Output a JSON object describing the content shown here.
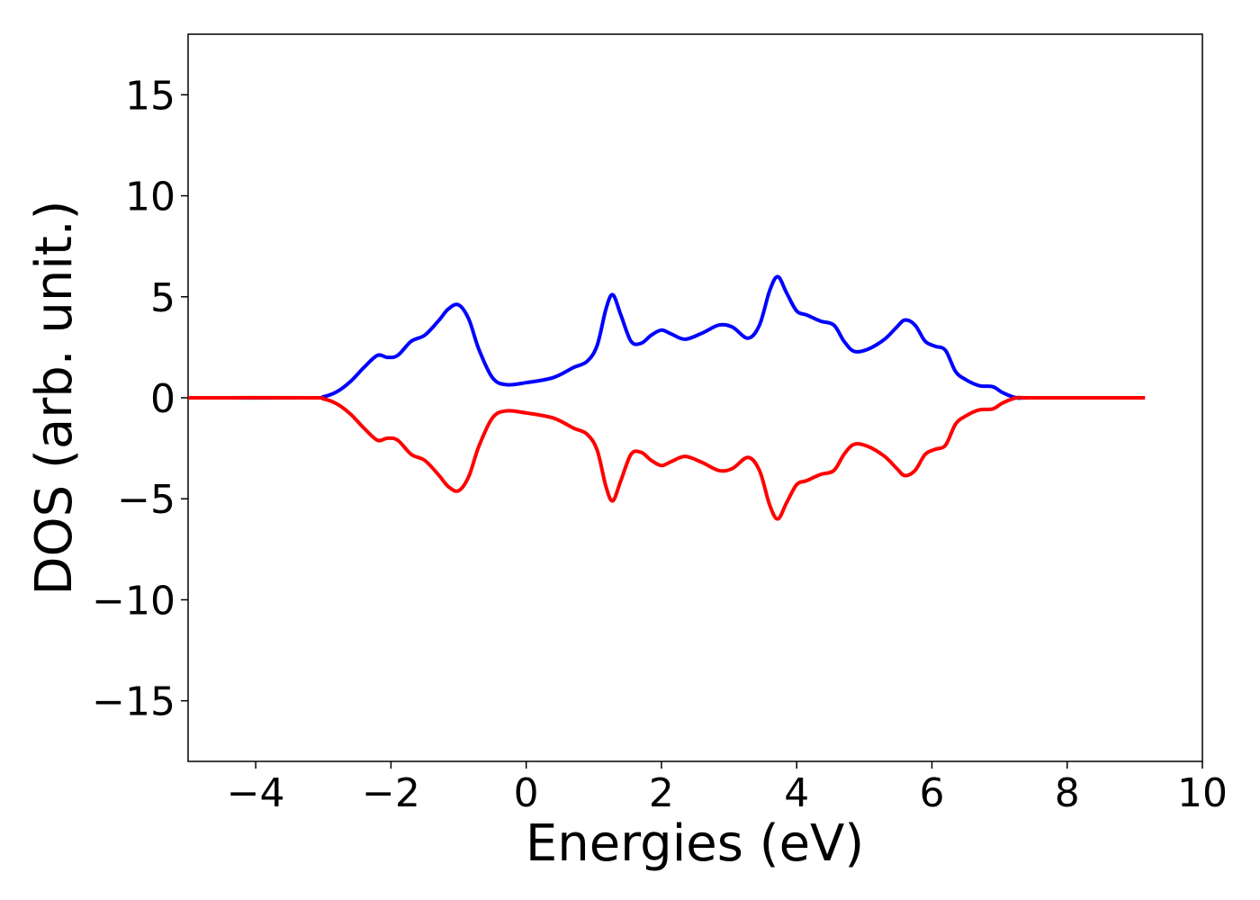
{
  "chart_data": {
    "type": "line",
    "title": "",
    "xlabel": "Energies (eV)",
    "ylabel": "DOS (arb. unit.)",
    "xlim": [
      -5,
      10
    ],
    "ylim": [
      -18,
      18
    ],
    "x_ticks": [
      -4,
      -2,
      0,
      2,
      4,
      6,
      8,
      10
    ],
    "x_tick_labels": [
      "−4",
      "−2",
      "0",
      "2",
      "4",
      "6",
      "8",
      "10"
    ],
    "y_ticks": [
      -15,
      -10,
      -5,
      0,
      5,
      10,
      15
    ],
    "y_tick_labels": [
      "−15",
      "−10",
      "−5",
      "0",
      "5",
      "10",
      "15"
    ],
    "grid": false,
    "legend": "none",
    "series": [
      {
        "color": "#0000ff",
        "x": [
          -5,
          -3.2,
          -3.0,
          -2.8,
          -2.6,
          -2.4,
          -2.2,
          -2.05,
          -1.9,
          -1.7,
          -1.5,
          -1.3,
          -1.15,
          -1.0,
          -0.85,
          -0.7,
          -0.5,
          -0.3,
          0.0,
          0.4,
          0.7,
          0.9,
          1.05,
          1.18,
          1.28,
          1.4,
          1.55,
          1.7,
          1.85,
          2.0,
          2.15,
          2.35,
          2.6,
          2.85,
          3.05,
          3.28,
          3.45,
          3.6,
          3.72,
          3.85,
          4.0,
          4.15,
          4.35,
          4.55,
          4.7,
          4.85,
          5.05,
          5.3,
          5.48,
          5.6,
          5.75,
          5.9,
          6.05,
          6.2,
          6.35,
          6.5,
          6.7,
          6.9,
          7.05,
          7.25,
          7.5,
          9.15
        ],
        "y": [
          0,
          0,
          0.05,
          0.3,
          0.8,
          1.5,
          2.1,
          2.0,
          2.1,
          2.8,
          3.1,
          3.8,
          4.4,
          4.6,
          3.9,
          2.4,
          1.0,
          0.65,
          0.75,
          1.0,
          1.5,
          1.8,
          2.6,
          4.4,
          5.1,
          4.1,
          2.8,
          2.7,
          3.1,
          3.35,
          3.15,
          2.9,
          3.2,
          3.6,
          3.5,
          2.95,
          3.6,
          5.3,
          6.0,
          5.2,
          4.3,
          4.1,
          3.8,
          3.6,
          2.8,
          2.3,
          2.4,
          2.9,
          3.5,
          3.85,
          3.6,
          2.8,
          2.55,
          2.35,
          1.3,
          0.9,
          0.6,
          0.55,
          0.25,
          0.0,
          0,
          0
        ]
      },
      {
        "color": "#ff0000",
        "x": [
          -5,
          -3.2,
          -3.0,
          -2.8,
          -2.6,
          -2.4,
          -2.2,
          -2.05,
          -1.9,
          -1.7,
          -1.5,
          -1.3,
          -1.15,
          -1.0,
          -0.85,
          -0.7,
          -0.5,
          -0.3,
          0.0,
          0.4,
          0.7,
          0.9,
          1.05,
          1.18,
          1.28,
          1.4,
          1.55,
          1.7,
          1.85,
          2.0,
          2.15,
          2.35,
          2.6,
          2.85,
          3.05,
          3.28,
          3.45,
          3.6,
          3.72,
          3.85,
          4.0,
          4.15,
          4.35,
          4.55,
          4.7,
          4.85,
          5.05,
          5.3,
          5.48,
          5.6,
          5.75,
          5.9,
          6.05,
          6.2,
          6.35,
          6.5,
          6.7,
          6.9,
          7.05,
          7.25,
          7.5,
          9.15
        ],
        "y": [
          0,
          0,
          -0.05,
          -0.3,
          -0.8,
          -1.5,
          -2.1,
          -2.0,
          -2.1,
          -2.8,
          -3.1,
          -3.8,
          -4.4,
          -4.6,
          -3.9,
          -2.4,
          -1.0,
          -0.65,
          -0.75,
          -1.0,
          -1.5,
          -1.8,
          -2.6,
          -4.4,
          -5.1,
          -4.1,
          -2.8,
          -2.7,
          -3.1,
          -3.35,
          -3.15,
          -2.9,
          -3.2,
          -3.6,
          -3.5,
          -2.95,
          -3.6,
          -5.3,
          -6.0,
          -5.2,
          -4.3,
          -4.1,
          -3.8,
          -3.6,
          -2.8,
          -2.3,
          -2.4,
          -2.9,
          -3.5,
          -3.85,
          -3.6,
          -2.8,
          -2.55,
          -2.35,
          -1.3,
          -0.9,
          -0.6,
          -0.55,
          -0.25,
          0.0,
          0,
          0
        ]
      }
    ]
  }
}
